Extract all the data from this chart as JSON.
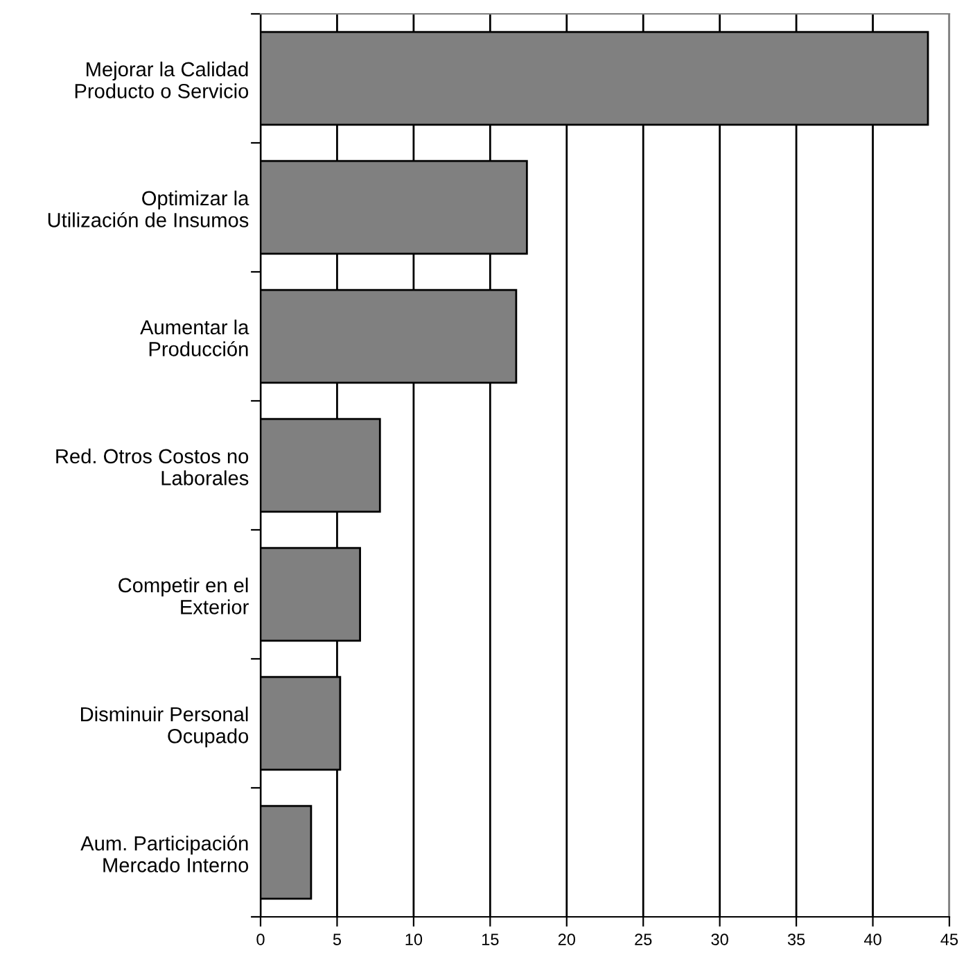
{
  "chart_data": {
    "type": "bar",
    "orientation": "horizontal",
    "categories": [
      "Mejorar la Calidad\nProducto o Servicio",
      "Optimizar la\nUtilización de Insumos",
      "Aumentar la\nProducción",
      "Red. Otros Costos no\nLaborales",
      "Competir en el\nExterior",
      "Disminuir Personal\nOcupado",
      "Aum. Participación\nMercado Interno"
    ],
    "values": [
      43.6,
      17.4,
      16.7,
      7.8,
      6.5,
      5.2,
      3.3
    ],
    "color": "#808080",
    "xlim": [
      0,
      45
    ],
    "xticks": [
      0,
      5,
      10,
      15,
      20,
      25,
      30,
      35,
      40,
      45
    ],
    "grid": "x"
  }
}
